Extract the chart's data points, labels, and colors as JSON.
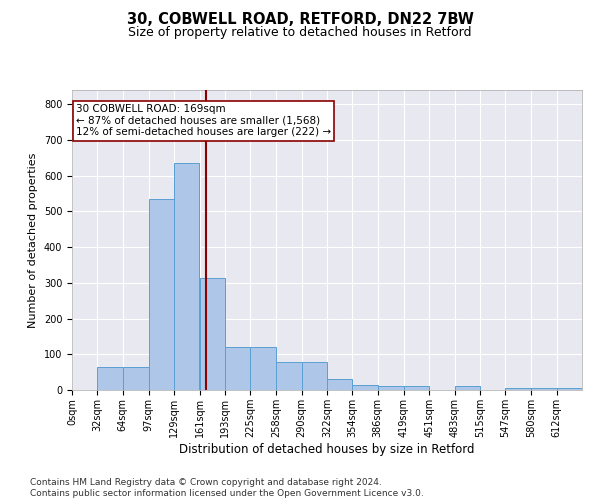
{
  "title1": "30, COBWELL ROAD, RETFORD, DN22 7BW",
  "title2": "Size of property relative to detached houses in Retford",
  "xlabel": "Distribution of detached houses by size in Retford",
  "ylabel": "Number of detached properties",
  "footnote": "Contains HM Land Registry data © Crown copyright and database right 2024.\nContains public sector information licensed under the Open Government Licence v3.0.",
  "bin_edges": [
    0,
    32,
    64,
    97,
    129,
    161,
    193,
    225,
    258,
    290,
    322,
    354,
    386,
    419,
    451,
    483,
    515,
    547,
    580,
    612,
    644
  ],
  "bar_values": [
    0,
    65,
    65,
    535,
    635,
    315,
    120,
    120,
    78,
    78,
    30,
    15,
    12,
    12,
    0,
    10,
    0,
    5,
    5,
    5
  ],
  "bar_color": "#aec6e8",
  "bar_edge_color": "#5a9fd4",
  "property_size": 169,
  "vline_color": "#8b0000",
  "annotation_text": "30 COBWELL ROAD: 169sqm\n← 87% of detached houses are smaller (1,568)\n12% of semi-detached houses are larger (222) →",
  "annotation_box_color": "white",
  "annotation_box_edge": "#8b0000",
  "ylim": [
    0,
    840
  ],
  "yticks": [
    0,
    100,
    200,
    300,
    400,
    500,
    600,
    700,
    800
  ],
  "xlim": [
    0,
    644
  ],
  "background_color": "#e8e8f0",
  "grid_color": "white",
  "title1_fontsize": 10.5,
  "title2_fontsize": 9,
  "xlabel_fontsize": 8.5,
  "ylabel_fontsize": 8,
  "tick_fontsize": 7,
  "annotation_fontsize": 7.5,
  "footnote_fontsize": 6.5
}
